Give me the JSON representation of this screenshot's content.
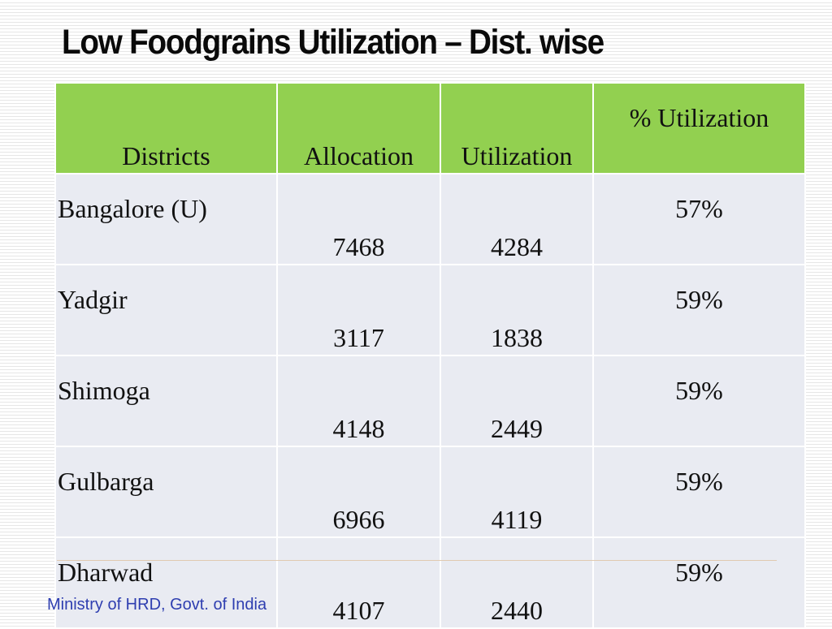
{
  "title": "Low Foodgrains Utilization – Dist. wise",
  "table": {
    "headers": [
      "Districts",
      "Allocation",
      "Utilization",
      "%  Utilization"
    ],
    "rows": [
      [
        "Bangalore (U)",
        "7468",
        "4284",
        "57%"
      ],
      [
        "Yadgir",
        "3117",
        "1838",
        "59%"
      ],
      [
        "Shimoga",
        "4148",
        "2449",
        "59%"
      ],
      [
        "Gulbarga",
        "6966",
        "4119",
        "59%"
      ],
      [
        "Dharwad",
        "4107",
        "2440",
        "59%"
      ]
    ]
  },
  "footer": {
    "text": "Ministry of HRD, Govt. of India"
  },
  "colors": {
    "header_fill": "#92d050",
    "row_fill": "#e9ebf2",
    "footer_text": "#2e3eb0"
  }
}
